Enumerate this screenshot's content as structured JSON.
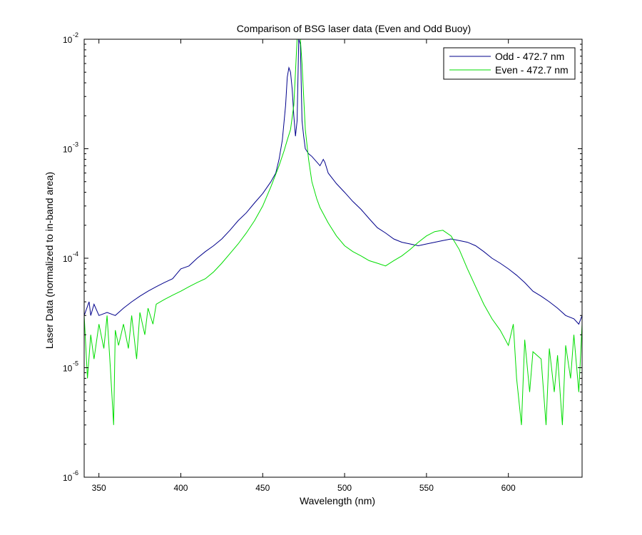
{
  "chart_data": {
    "type": "line",
    "title": "Comparison of BSG laser data (Even and Odd Buoy)",
    "xlabel": "Wavelength (nm)",
    "ylabel": "Laser Data (normalized to in-band area)",
    "xlim": [
      341,
      645
    ],
    "ylim": [
      1e-06,
      0.01
    ],
    "yscale": "log",
    "x_ticks": [
      350,
      400,
      450,
      500,
      550,
      600
    ],
    "y_ticks": [
      {
        "value": 1e-06,
        "base": "10",
        "exp": "-6"
      },
      {
        "value": 1e-05,
        "base": "10",
        "exp": "-5"
      },
      {
        "value": 0.0001,
        "base": "10",
        "exp": "-4"
      },
      {
        "value": 0.001,
        "base": "10",
        "exp": "-3"
      },
      {
        "value": 0.01,
        "base": "10",
        "exp": "-2"
      }
    ],
    "grid": false,
    "legend": "top-right",
    "series": [
      {
        "name": "Odd - 472.7 nm",
        "color": "#00008b",
        "x": [
          341,
          344,
          345,
          347,
          350,
          355,
          360,
          365,
          370,
          375,
          380,
          385,
          390,
          395,
          400,
          405,
          410,
          415,
          420,
          425,
          430,
          435,
          440,
          445,
          450,
          455,
          458,
          460,
          462,
          464,
          465,
          466,
          467,
          468,
          469,
          470,
          471,
          472,
          473,
          474,
          475,
          476,
          478,
          480,
          485,
          487,
          488,
          490,
          495,
          500,
          505,
          510,
          515,
          520,
          525,
          530,
          535,
          540,
          545,
          550,
          555,
          560,
          565,
          570,
          575,
          580,
          585,
          590,
          595,
          600,
          605,
          610,
          615,
          620,
          625,
          630,
          635,
          640,
          643,
          645
        ],
        "y": [
          3e-05,
          4e-05,
          3e-05,
          3.8e-05,
          3e-05,
          3.2e-05,
          3e-05,
          3.5e-05,
          4e-05,
          4.5e-05,
          5e-05,
          5.5e-05,
          6e-05,
          6.5e-05,
          8e-05,
          8.5e-05,
          0.0001,
          0.000115,
          0.00013,
          0.00015,
          0.00018,
          0.00022,
          0.00026,
          0.00032,
          0.00039,
          0.0005,
          0.0006,
          0.0008,
          0.0012,
          0.0025,
          0.0045,
          0.0055,
          0.005,
          0.0035,
          0.002,
          0.0013,
          0.0018,
          0.01,
          0.009,
          0.0018,
          0.0013,
          0.001,
          0.0009,
          0.00085,
          0.0007,
          0.0008,
          0.00075,
          0.0006,
          0.00048,
          0.0004,
          0.00033,
          0.00028,
          0.00023,
          0.00019,
          0.00017,
          0.00015,
          0.00014,
          0.000135,
          0.00013,
          0.000135,
          0.00014,
          0.000145,
          0.00015,
          0.000145,
          0.00014,
          0.00013,
          0.000115,
          0.0001,
          9e-05,
          8e-05,
          7e-05,
          6e-05,
          5e-05,
          4.5e-05,
          4e-05,
          3.5e-05,
          3e-05,
          2.8e-05,
          2.5e-05,
          3e-05
        ]
      },
      {
        "name": "Even - 472.7 nm",
        "color": "#00dd00",
        "x": [
          341,
          343,
          345,
          347,
          350,
          353,
          355,
          357,
          359,
          360,
          362,
          365,
          368,
          370,
          373,
          375,
          378,
          380,
          383,
          385,
          390,
          395,
          400,
          405,
          410,
          415,
          420,
          425,
          430,
          435,
          440,
          445,
          450,
          455,
          460,
          463,
          465,
          467,
          469,
          470,
          471,
          472,
          473,
          474,
          475,
          476,
          478,
          480,
          483,
          485,
          490,
          495,
          500,
          505,
          510,
          515,
          520,
          525,
          530,
          535,
          540,
          545,
          550,
          555,
          560,
          565,
          570,
          575,
          580,
          585,
          590,
          595,
          600,
          603,
          605,
          608,
          610,
          613,
          615,
          620,
          623,
          625,
          628,
          630,
          633,
          635,
          638,
          640,
          643,
          645
        ],
        "y": [
          3e-05,
          8e-06,
          2e-05,
          1.2e-05,
          2.5e-05,
          1.5e-05,
          3e-05,
          1e-05,
          3e-06,
          2.2e-05,
          1.6e-05,
          2.5e-05,
          1.5e-05,
          3e-05,
          1.2e-05,
          3.2e-05,
          2e-05,
          3.5e-05,
          2.5e-05,
          3.8e-05,
          4.2e-05,
          4.6e-05,
          5e-05,
          5.5e-05,
          6e-05,
          6.5e-05,
          7.5e-05,
          9e-05,
          0.00011,
          0.000135,
          0.00017,
          0.00022,
          0.0003,
          0.00045,
          0.0007,
          0.00095,
          0.0012,
          0.0015,
          0.0025,
          0.005,
          0.01,
          0.01,
          0.01,
          0.006,
          0.003,
          0.0015,
          0.0008,
          0.0005,
          0.00035,
          0.00029,
          0.00021,
          0.00016,
          0.00013,
          0.000115,
          0.000105,
          9.5e-05,
          9e-05,
          8.5e-05,
          9.5e-05,
          0.000105,
          0.00012,
          0.00014,
          0.00016,
          0.000175,
          0.00018,
          0.00016,
          0.00012,
          8e-05,
          5.5e-05,
          3.8e-05,
          2.8e-05,
          2.2e-05,
          1.6e-05,
          2.5e-05,
          8e-06,
          3e-06,
          1.8e-05,
          6e-06,
          1.4e-05,
          1.2e-05,
          3e-06,
          1.5e-05,
          6e-06,
          1.3e-05,
          3e-06,
          1.6e-05,
          8e-06,
          2e-05,
          6e-06,
          2.5e-05
        ]
      }
    ]
  }
}
